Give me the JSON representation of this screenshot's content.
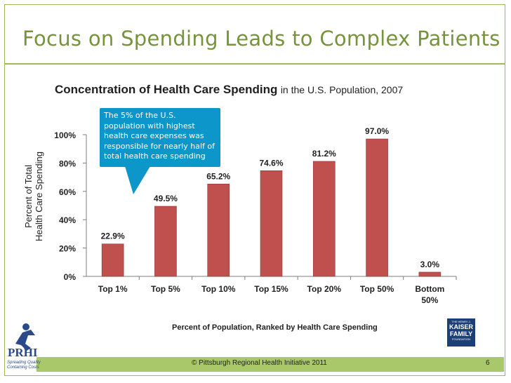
{
  "slide": {
    "title": "Focus on Spending Leads to Complex Patients",
    "page_number": "6",
    "footer": "© Pittsburgh Regional Health Initiative  2011",
    "title_color": "#77933c",
    "accent_color": "#9bbb59"
  },
  "logos": {
    "prhi": {
      "name": "PRHI",
      "tagline": "Spreading Quality Containing Costs"
    },
    "kaiser": {
      "line1": "THE HENRY J.",
      "line2": "KAISER",
      "line3": "FAMILY",
      "line4": "FOUNDATION"
    }
  },
  "callout": {
    "text": "The 5% of the U.S. population with highest health care expenses was responsible for nearly half of total health care spending",
    "color": "#0d96c9"
  },
  "chart_data": {
    "type": "bar",
    "title": "Concentration of Health Care Spending",
    "subtitle": "in the U.S. Population, 2007",
    "xlabel": "Percent of Population, Ranked by Health Care Spending",
    "ylabel_line1": "Percent of Total",
    "ylabel_line2": "Health Care Spending",
    "categories": [
      "Top 1%",
      "Top 5%",
      "Top 10%",
      "Top 15%",
      "Top 20%",
      "Top 50%",
      "Bottom 50%"
    ],
    "values": [
      22.9,
      49.5,
      65.2,
      74.6,
      81.2,
      97.0,
      3.0
    ],
    "data_labels": [
      "22.9%",
      "49.5%",
      "65.2%",
      "74.6%",
      "81.2%",
      "97.0%",
      "3.0%"
    ],
    "yticks": [
      "0%",
      "20%",
      "40%",
      "60%",
      "80%",
      "100%"
    ],
    "ytick_values": [
      0,
      20,
      40,
      60,
      80,
      100
    ],
    "ylim": [
      0,
      100
    ],
    "bar_color": "#c0504d",
    "grid": false
  }
}
